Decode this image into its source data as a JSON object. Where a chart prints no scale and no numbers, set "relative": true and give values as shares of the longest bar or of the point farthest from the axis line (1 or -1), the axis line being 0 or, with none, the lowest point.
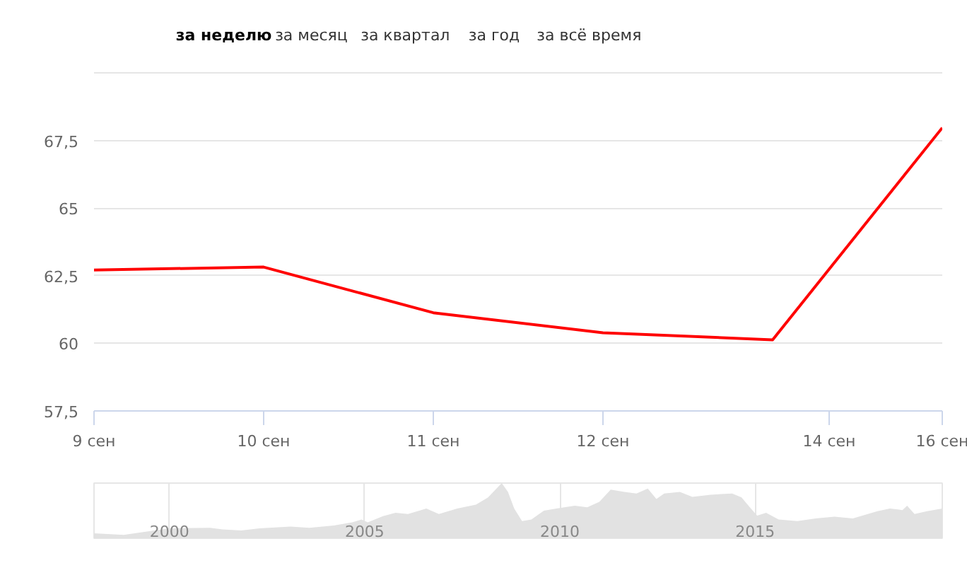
{
  "chart_data": [
    {
      "type": "line",
      "annotations": [
        "за неделю",
        "за месяц",
        "за квартал",
        "за год",
        "за всё время",
        "14 сен"
      ],
      "categories": [
        "9 сен",
        "10 сен",
        "11 сен",
        "12 сен",
        null,
        "16 сен"
      ],
      "series": [
        {
          "color": "#ff0000",
          "values": [
            62.71,
            62.82,
            61.13,
            60.39,
            60.13,
            67.97
          ]
        }
      ],
      "ylim": [
        57.5,
        70
      ],
      "yticks": [
        {
          "value": 57.5,
          "label": "57,5"
        },
        {
          "value": 60,
          "label": "60"
        },
        {
          "value": 62.5,
          "label": "62,5"
        },
        {
          "value": 65,
          "label": "65"
        },
        {
          "value": 67.5,
          "label": "67,5"
        }
      ],
      "grid": "y",
      "line_style": "solid"
    },
    {
      "type": "area",
      "relative": true,
      "grid": "x",
      "x": [
        1998.07,
        1998.83,
        1999.3,
        2000.0,
        2001.04,
        2001.36,
        2001.84,
        2002.31,
        2003.1,
        2003.58,
        2004.21,
        2004.68,
        2004.92,
        2005.08,
        2005.47,
        2005.79,
        2006.11,
        2006.58,
        2006.9,
        2007.37,
        2007.85,
        2008.16,
        2008.51,
        2008.67,
        2008.83,
        2009.03,
        2009.27,
        2009.59,
        2009.91,
        2010.38,
        2010.7,
        2011.01,
        2011.3,
        2011.65,
        2011.96,
        2012.25,
        2012.47,
        2012.67,
        2013.07,
        2013.39,
        2013.86,
        2014.41,
        2014.65,
        2014.89,
        2015.05,
        2015.28,
        2015.6,
        2016.08,
        2016.55,
        2017.03,
        2017.5,
        2018.13,
        2018.45,
        2018.77,
        2018.89,
        2019.08,
        2019.4,
        2019.79
      ],
      "series": [
        {
          "color": "#e2e2e2",
          "values": [
            0.09,
            0.06,
            0.11,
            0.18,
            0.19,
            0.16,
            0.14,
            0.18,
            0.21,
            0.19,
            0.23,
            0.29,
            0.34,
            0.29,
            0.4,
            0.46,
            0.44,
            0.54,
            0.44,
            0.54,
            0.61,
            0.74,
            1.0,
            0.84,
            0.54,
            0.31,
            0.34,
            0.5,
            0.54,
            0.59,
            0.56,
            0.66,
            0.88,
            0.84,
            0.81,
            0.9,
            0.71,
            0.81,
            0.84,
            0.75,
            0.79,
            0.81,
            0.74,
            0.54,
            0.41,
            0.46,
            0.34,
            0.31,
            0.36,
            0.39,
            0.36,
            0.49,
            0.54,
            0.51,
            0.59,
            0.44,
            0.49,
            0.54
          ]
        }
      ],
      "xlim": [
        1998.07,
        2019.79
      ],
      "xticks": [
        2000,
        2005,
        2010,
        2015
      ]
    }
  ]
}
